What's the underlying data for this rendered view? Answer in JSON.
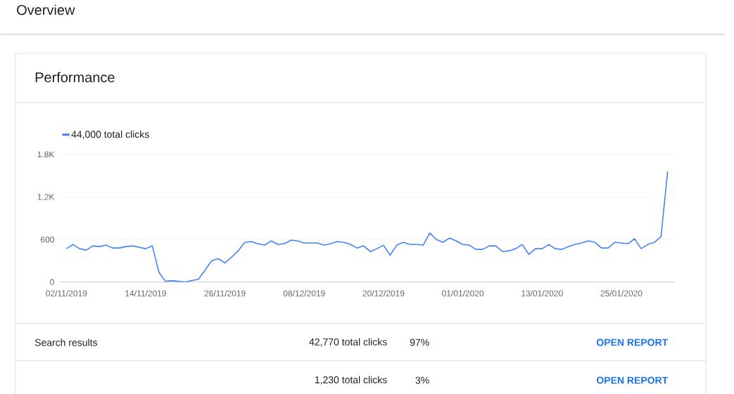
{
  "chart_data": {
    "type": "line",
    "title": "Overview",
    "subtitle": "Performance",
    "x": [
      "2019-11-02",
      "2019-11-03",
      "2019-11-04",
      "2019-11-05",
      "2019-11-06",
      "2019-11-07",
      "2019-11-08",
      "2019-11-09",
      "2019-11-10",
      "2019-11-11",
      "2019-11-12",
      "2019-11-13",
      "2019-11-14",
      "2019-11-15",
      "2019-11-16",
      "2019-11-17",
      "2019-11-18",
      "2019-11-19",
      "2019-11-20",
      "2019-11-21",
      "2019-11-22",
      "2019-11-23",
      "2019-11-24",
      "2019-11-25",
      "2019-11-26",
      "2019-11-27",
      "2019-11-28",
      "2019-11-29",
      "2019-11-30",
      "2019-12-01",
      "2019-12-02",
      "2019-12-03",
      "2019-12-04",
      "2019-12-05",
      "2019-12-06",
      "2019-12-07",
      "2019-12-08",
      "2019-12-09",
      "2019-12-10",
      "2019-12-11",
      "2019-12-12",
      "2019-12-13",
      "2019-12-14",
      "2019-12-15",
      "2019-12-16",
      "2019-12-17",
      "2019-12-18",
      "2019-12-19",
      "2019-12-20",
      "2019-12-21",
      "2019-12-22",
      "2019-12-23",
      "2019-12-24",
      "2019-12-25",
      "2019-12-26",
      "2019-12-27",
      "2019-12-28",
      "2019-12-29",
      "2019-12-30",
      "2019-12-31",
      "2020-01-01",
      "2020-01-02",
      "2020-01-03",
      "2020-01-04",
      "2020-01-05",
      "2020-01-06",
      "2020-01-07",
      "2020-01-08",
      "2020-01-09",
      "2020-01-10",
      "2020-01-11",
      "2020-01-12",
      "2020-01-13",
      "2020-01-14",
      "2020-01-15",
      "2020-01-16",
      "2020-01-17",
      "2020-01-18",
      "2020-01-19",
      "2020-01-20",
      "2020-01-21",
      "2020-01-22",
      "2020-01-23",
      "2020-01-24",
      "2020-01-25",
      "2020-01-26",
      "2020-01-27",
      "2020-01-28",
      "2020-01-29",
      "2020-01-30",
      "2020-01-31",
      "2020-02-01"
    ],
    "series": [
      {
        "name": "44,000 total clicks",
        "color": "#4285f4",
        "values": [
          470,
          530,
          470,
          450,
          510,
          500,
          520,
          480,
          480,
          500,
          510,
          490,
          470,
          510,
          140,
          10,
          20,
          10,
          0,
          20,
          40,
          170,
          300,
          330,
          270,
          350,
          440,
          560,
          570,
          540,
          520,
          580,
          530,
          540,
          590,
          580,
          550,
          550,
          550,
          520,
          540,
          570,
          560,
          530,
          480,
          510,
          430,
          470,
          520,
          380,
          520,
          560,
          530,
          530,
          520,
          690,
          600,
          560,
          620,
          580,
          530,
          520,
          460,
          460,
          510,
          510,
          430,
          440,
          470,
          530,
          390,
          470,
          470,
          530,
          470,
          460,
          500,
          530,
          550,
          580,
          560,
          480,
          480,
          560,
          550,
          540,
          610,
          470,
          530,
          560,
          640,
          1560
        ]
      }
    ],
    "xlim": [
      "2019-11-01",
      "2020-02-02"
    ],
    "xticks": [
      {
        "value": "2019-11-02",
        "label": "02/11/2019"
      },
      {
        "value": "2019-11-14",
        "label": "14/11/2019"
      },
      {
        "value": "2019-11-26",
        "label": "26/11/2019"
      },
      {
        "value": "2019-12-08",
        "label": "08/12/2019"
      },
      {
        "value": "2019-12-20",
        "label": "20/12/2019"
      },
      {
        "value": "2020-01-01",
        "label": "01/01/2020"
      },
      {
        "value": "2020-01-13",
        "label": "13/01/2020"
      },
      {
        "value": "2020-01-25",
        "label": "25/01/2020"
      }
    ],
    "ylim": [
      0,
      1800
    ],
    "yticks": [
      0,
      600,
      {
        "value": 1200,
        "label": "1.2K"
      },
      {
        "value": 1800,
        "label": "1.8K"
      }
    ],
    "grid": "y",
    "legend": "top left",
    "annotations": [
      "Search results",
      "42,770 total clicks",
      "97%",
      "OPEN REPORT",
      "1,230 total clicks",
      "3%",
      "OPEN REPORT"
    ]
  }
}
